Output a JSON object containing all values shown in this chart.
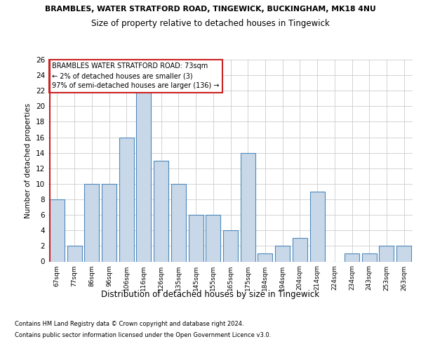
{
  "title_line1": "BRAMBLES, WATER STRATFORD ROAD, TINGEWICK, BUCKINGHAM, MK18 4NU",
  "title_line2": "Size of property relative to detached houses in Tingewick",
  "xlabel": "Distribution of detached houses by size in Tingewick",
  "ylabel": "Number of detached properties",
  "footnote1": "Contains HM Land Registry data © Crown copyright and database right 2024.",
  "footnote2": "Contains public sector information licensed under the Open Government Licence v3.0.",
  "categories": [
    "67sqm",
    "77sqm",
    "86sqm",
    "96sqm",
    "106sqm",
    "116sqm",
    "126sqm",
    "135sqm",
    "145sqm",
    "155sqm",
    "165sqm",
    "175sqm",
    "184sqm",
    "194sqm",
    "204sqm",
    "214sqm",
    "224sqm",
    "234sqm",
    "243sqm",
    "253sqm",
    "263sqm"
  ],
  "values": [
    8,
    2,
    10,
    10,
    16,
    22,
    13,
    10,
    6,
    6,
    4,
    14,
    1,
    2,
    3,
    9,
    0,
    1,
    1,
    2,
    2
  ],
  "bar_color": "#c8d8e8",
  "bar_edge_color": "#4d88bb",
  "highlight_line_color": "#cc2222",
  "ylim_max": 26,
  "ytick_step": 2,
  "annotation_text": "BRAMBLES WATER STRATFORD ROAD: 73sqm\n← 2% of detached houses are smaller (3)\n97% of semi-detached houses are larger (136) →",
  "annotation_box_facecolor": "#ffffff",
  "annotation_box_edgecolor": "#cc2222",
  "grid_color": "#cccccc",
  "background_color": "#ffffff",
  "title1_fontsize": 7.8,
  "title2_fontsize": 8.5,
  "annotation_fontsize": 7.0,
  "ylabel_fontsize": 7.5,
  "ytick_fontsize": 7.5,
  "xtick_fontsize": 6.5,
  "xlabel_fontsize": 8.5,
  "footnote_fontsize": 6.0
}
